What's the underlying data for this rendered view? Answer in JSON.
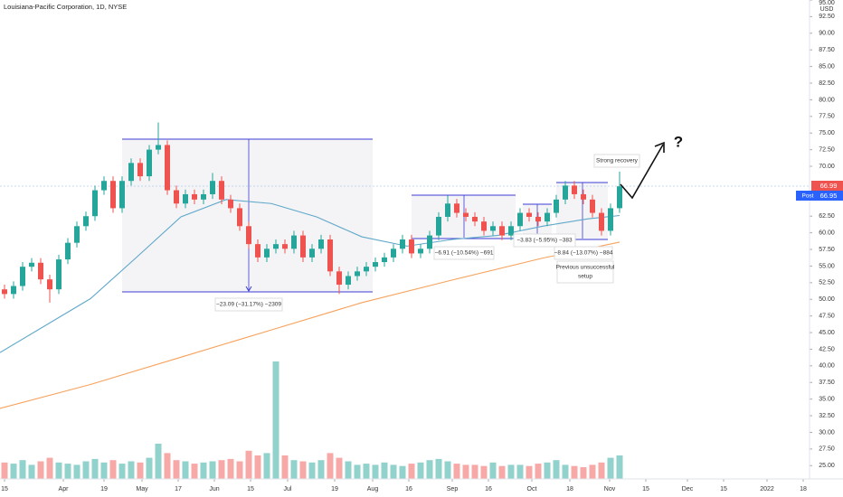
{
  "chart_data": {
    "type": "candlestick",
    "title": "Louisiana-Pacific Corporation, 1D, NYSE",
    "currency": "USD",
    "up_color": "#26a69a",
    "down_color": "#ef5350",
    "xlim": [
      0,
      89.5
    ],
    "ylim": [
      23,
      95
    ],
    "xticks": [
      {
        "value": 0.5,
        "label": "15"
      },
      {
        "value": 7,
        "label": "Apr"
      },
      {
        "value": 11.5,
        "label": "19"
      },
      {
        "value": 15.7,
        "label": "May"
      },
      {
        "value": 19.7,
        "label": "17"
      },
      {
        "value": 23.7,
        "label": "Jun"
      },
      {
        "value": 27.7,
        "label": "15"
      },
      {
        "value": 31.8,
        "label": "Jul"
      },
      {
        "value": 37,
        "label": "19"
      },
      {
        "value": 41.2,
        "label": "Aug"
      },
      {
        "value": 45.2,
        "label": "16"
      },
      {
        "value": 50,
        "label": "Sep"
      },
      {
        "value": 54,
        "label": "16"
      },
      {
        "value": 58.8,
        "label": "Oct"
      },
      {
        "value": 63,
        "label": "18"
      },
      {
        "value": 67.4,
        "label": "Nov"
      },
      {
        "value": 71.4,
        "label": "15"
      },
      {
        "value": 76,
        "label": "Dec"
      },
      {
        "value": 80,
        "label": "15"
      },
      {
        "value": 84.8,
        "label": "2022"
      },
      {
        "value": 88.8,
        "label": "18"
      }
    ],
    "yticks": [
      {
        "value": 95,
        "label": "95.00"
      },
      {
        "value": 92.5,
        "label": "92.50"
      },
      {
        "value": 90,
        "label": "90.00"
      },
      {
        "value": 87.5,
        "label": "87.50"
      },
      {
        "value": 85,
        "label": "85.00"
      },
      {
        "value": 82.5,
        "label": "82.50"
      },
      {
        "value": 80,
        "label": "80.00"
      },
      {
        "value": 77.5,
        "label": "77.50"
      },
      {
        "value": 75,
        "label": "75.00"
      },
      {
        "value": 72.5,
        "label": "72.50"
      },
      {
        "value": 70,
        "label": "70.00"
      },
      {
        "value": 62.5,
        "label": "62.50"
      },
      {
        "value": 60,
        "label": "60.00"
      },
      {
        "value": 57.5,
        "label": "57.50"
      },
      {
        "value": 55,
        "label": "55.00"
      },
      {
        "value": 52.5,
        "label": "52.50"
      },
      {
        "value": 50,
        "label": "50.00"
      },
      {
        "value": 47.5,
        "label": "47.50"
      },
      {
        "value": 45,
        "label": "45.00"
      },
      {
        "value": 42.5,
        "label": "42.50"
      },
      {
        "value": 40,
        "label": "40.00"
      },
      {
        "value": 37.5,
        "label": "37.50"
      },
      {
        "value": 35,
        "label": "35.00"
      },
      {
        "value": 32.5,
        "label": "32.50"
      },
      {
        "value": 30,
        "label": "30.00"
      },
      {
        "value": 27.5,
        "label": "27.50"
      },
      {
        "value": 25,
        "label": "25.00"
      }
    ],
    "candles": {
      "x": [
        0.5,
        1.5,
        2.5,
        3.5,
        4.5,
        5.5,
        6.5,
        7.5,
        8.5,
        9.5,
        10.5,
        11.5,
        12.5,
        13.5,
        14.5,
        15.5,
        16.5,
        17.5,
        18.5,
        19.5,
        20.5,
        21.5,
        22.5,
        23.5,
        24.5,
        25.5,
        26.5,
        27.5,
        28.5,
        29.5,
        30.5,
        31.5,
        32.5,
        33.5,
        34.5,
        35.5,
        36.5,
        37.5,
        38.5,
        39.5,
        40.5,
        41.5,
        42.5,
        43.5,
        44.5,
        45.5,
        46.5,
        47.5,
        48.5,
        49.5,
        50.5,
        51.5,
        52.5,
        53.5,
        54.5,
        55.5,
        56.5,
        57.5,
        58.5,
        59.5,
        60.5,
        61.5,
        62.5,
        63.5,
        64.5,
        65.5,
        66.5,
        67.5,
        68.5
      ],
      "open": [
        51.5,
        50.8,
        52,
        54.9,
        55.5,
        53,
        51.5,
        56,
        58.5,
        61,
        62.5,
        66.4,
        67.8,
        63.7,
        67.8,
        70.5,
        68.5,
        72.5,
        73.2,
        66.4,
        64.4,
        65.8,
        65,
        65.8,
        67.8,
        65,
        63.7,
        61,
        58.3,
        56.3,
        57.6,
        58.3,
        57.6,
        59.6,
        56.3,
        57.6,
        59,
        54.2,
        52.2,
        53.5,
        54.2,
        54.9,
        55.6,
        56.3,
        57.6,
        59,
        56.9,
        57.6,
        59.6,
        62.4,
        64.4,
        63,
        62.4,
        61.7,
        60.3,
        61,
        59.6,
        61,
        63,
        62.4,
        61.7,
        63,
        65,
        67.1,
        65.8,
        65,
        63,
        60.3,
        63.7
      ],
      "high": [
        52.2,
        52.7,
        55.6,
        56.2,
        56.2,
        53.7,
        56.7,
        59.2,
        61.7,
        63.2,
        67.1,
        68.5,
        68.5,
        68.5,
        71.2,
        71.2,
        73.2,
        76.6,
        73.9,
        67.1,
        66.5,
        66.5,
        66.5,
        69,
        68.5,
        65.7,
        64.4,
        61.7,
        59,
        58.3,
        59,
        59,
        60.3,
        60.3,
        58.3,
        59.7,
        59.7,
        54.9,
        54.2,
        54.9,
        55.6,
        56.3,
        57,
        58.3,
        59.7,
        59.7,
        58.3,
        60.3,
        63.1,
        65.6,
        65.1,
        63.7,
        63.1,
        62.4,
        61.7,
        61.7,
        61.7,
        63.7,
        63.7,
        63.1,
        63.7,
        65.7,
        67.8,
        67.8,
        66.5,
        65.7,
        63.7,
        64.4,
        69.2
      ],
      "low": [
        50.1,
        50.1,
        51.3,
        54.2,
        52.3,
        49.5,
        50.8,
        55.3,
        57.8,
        60.3,
        61.8,
        65.7,
        63,
        63,
        67.1,
        67.8,
        67.8,
        71.8,
        65.7,
        63.7,
        63.7,
        64.3,
        64.3,
        65.1,
        64.3,
        63,
        60.3,
        57.6,
        55.6,
        55.6,
        56.9,
        56.9,
        56.9,
        55.6,
        55.6,
        56.9,
        53.5,
        50.8,
        51.5,
        52.8,
        53.5,
        54.2,
        54.9,
        55.6,
        56.9,
        56.2,
        56.2,
        56.9,
        58.9,
        61.7,
        62.3,
        61.7,
        61,
        59.6,
        59.6,
        58.9,
        58.9,
        60.3,
        61.7,
        61,
        61,
        62.3,
        64.3,
        65.1,
        64.3,
        62.3,
        59.6,
        59.6,
        63
      ],
      "close": [
        50.8,
        52,
        54.9,
        55.5,
        53,
        51.5,
        56,
        58.5,
        61,
        62.5,
        66.4,
        67.8,
        63.7,
        67.8,
        70.5,
        68.5,
        72.5,
        73.2,
        66.4,
        64.4,
        65.8,
        65,
        65.8,
        67.8,
        65,
        63.7,
        61,
        58.3,
        56.3,
        57.6,
        58.3,
        57.6,
        59.6,
        56.3,
        57.6,
        59,
        54.2,
        52.2,
        53.5,
        54.2,
        54.9,
        55.6,
        56.3,
        57.6,
        59,
        56.9,
        57.6,
        59.6,
        62.4,
        64.4,
        63,
        62.4,
        61.7,
        60.3,
        61,
        59.6,
        61,
        63,
        62.4,
        61.7,
        63,
        65,
        67.1,
        65.8,
        65,
        63,
        60.3,
        63.7,
        66.99
      ],
      "volume": [
        14,
        13,
        16,
        12,
        15,
        18,
        14,
        13,
        12,
        15,
        17,
        14,
        16,
        13,
        15,
        14,
        18,
        30,
        22,
        16,
        15,
        13,
        14,
        15,
        16,
        17,
        15,
        24,
        20,
        22,
        100,
        20,
        16,
        15,
        14,
        16,
        22,
        18,
        15,
        12,
        13,
        12,
        14,
        12,
        11,
        13,
        14,
        16,
        17,
        15,
        13,
        12,
        12,
        11,
        14,
        11,
        12,
        12,
        11,
        13,
        14,
        16,
        12,
        11,
        10,
        12,
        14,
        18,
        20
      ]
    },
    "volume_lim": [
      0,
      100
    ],
    "series": [
      {
        "color": "#5fa8c9",
        "x": [
          0,
          10,
          15,
          20,
          25,
          30,
          35,
          40,
          45,
          50,
          55,
          60,
          65,
          68.5
        ],
        "values": [
          42,
          50.1,
          56.2,
          62.4,
          65,
          64.4,
          62.4,
          59.4,
          58,
          59,
          59.6,
          61,
          62.1,
          62.6
        ]
      },
      {
        "color": "#f7a25c",
        "x": [
          0,
          10,
          20,
          30,
          40,
          50,
          60,
          68.5
        ],
        "values": [
          33.6,
          37.2,
          41.3,
          45.4,
          49.5,
          52.9,
          56.2,
          58.6
        ]
      }
    ],
    "last_price_label": "66.99",
    "post_tag": "Post",
    "post_price_label": "66.95",
    "annotations": {
      "measure_1": "−23.09 (−31.17%) −2309",
      "measure_2": "−6.91 (−10.54%) −691",
      "measure_3": "−3.83 (−5.95%) −383",
      "measure_4": "−8.84 (−13.07%) −884",
      "note_1_line_1": "Previous unsuccessful",
      "note_1_line_2": "setup",
      "note_2": "Strong recovery",
      "question": "?"
    }
  }
}
